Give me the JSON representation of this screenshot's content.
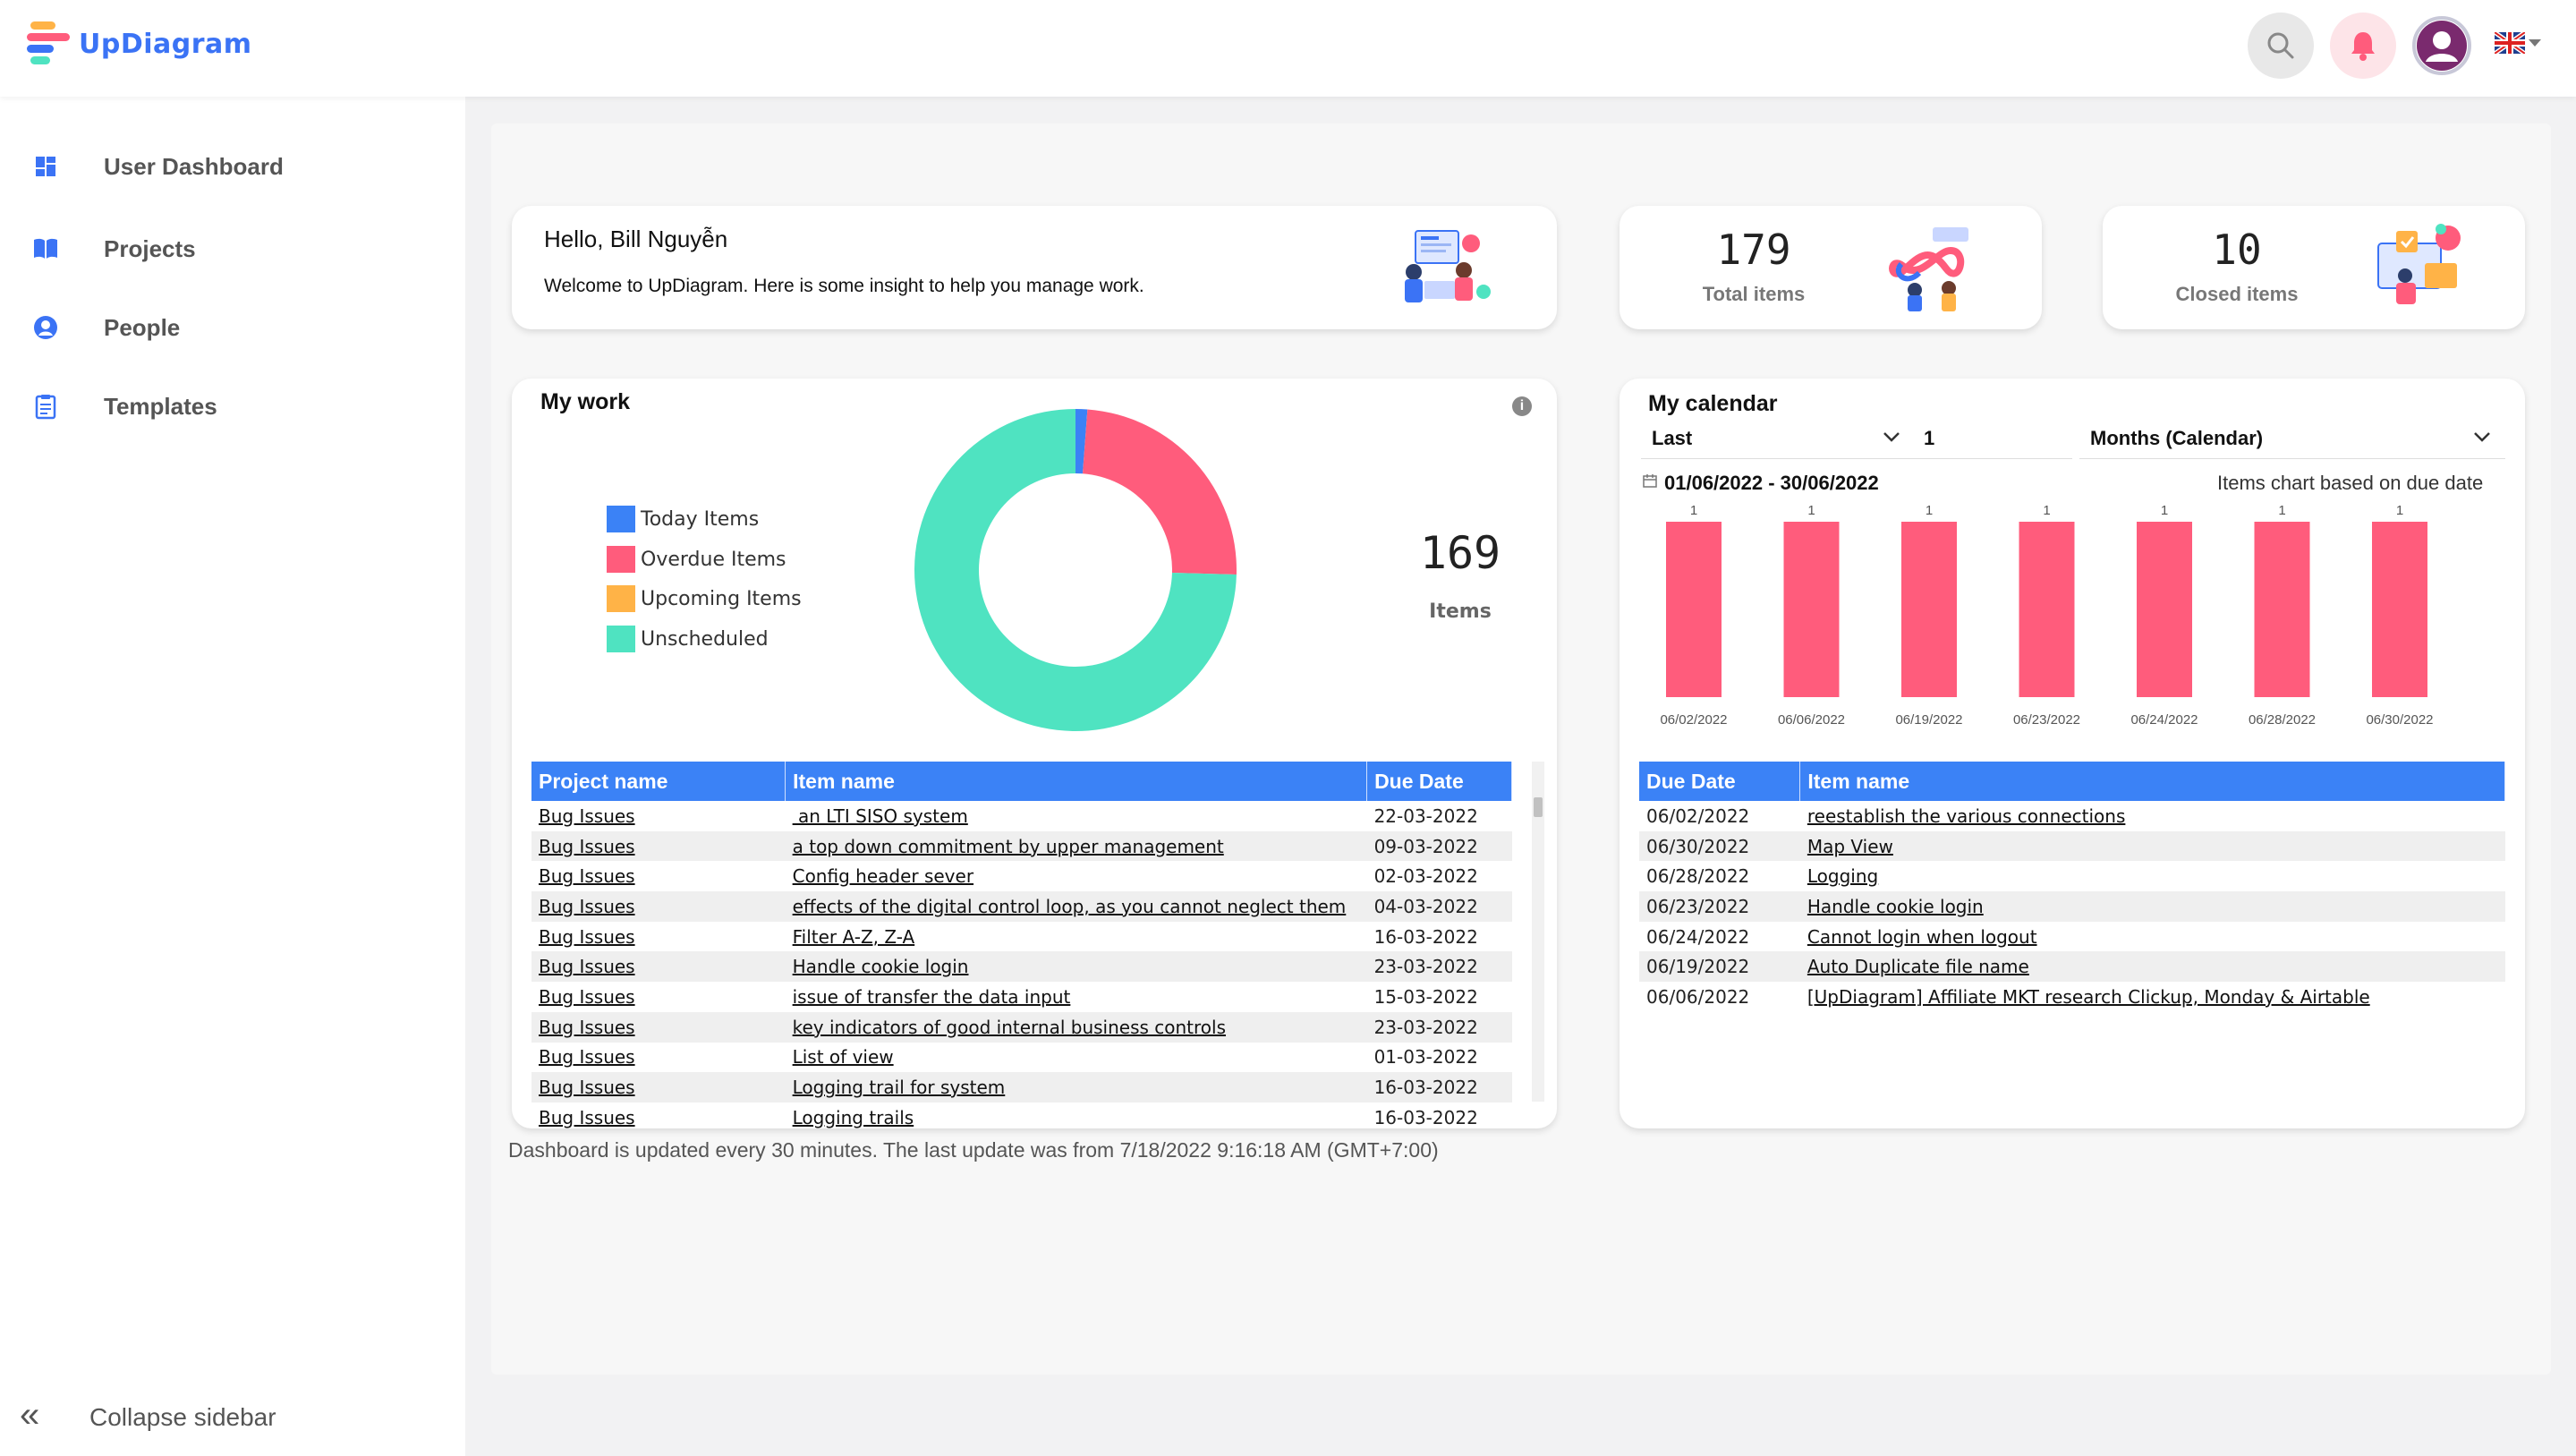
{
  "app": {
    "name": "UpDiagram",
    "brand_colors": [
      "#3b73f5",
      "#ff5c7c",
      "#ffb347",
      "#4fe3c1"
    ]
  },
  "header": {
    "search_icon": "search-icon",
    "notification_icon": "bell-icon",
    "avatar_icon": "user-avatar-icon",
    "language_icon": "uk-flag-icon"
  },
  "sidebar": {
    "items": [
      {
        "label": "User Dashboard",
        "icon": "dashboard-grid-icon",
        "active": true
      },
      {
        "label": "Projects",
        "icon": "book-icon"
      },
      {
        "label": "People",
        "icon": "person-icon"
      },
      {
        "label": "Templates",
        "icon": "clipboard-icon"
      }
    ],
    "collapse_label": "Collapse sidebar"
  },
  "welcome": {
    "greeting": "Hello, Bill Nguyễn",
    "message": "Welcome to UpDiagram. Here is some insight to help you manage work."
  },
  "stats": {
    "total": {
      "value": "179",
      "label": "Total items"
    },
    "closed": {
      "value": "10",
      "label": "Closed items"
    }
  },
  "my_work": {
    "title": "My work",
    "total_value": "169",
    "total_label": "Items",
    "legend": [
      {
        "label": "Today Items",
        "color": "#3b82f6"
      },
      {
        "label": "Overdue Items",
        "color": "#ff5c7c"
      },
      {
        "label": "Upcoming Items",
        "color": "#ffb347"
      },
      {
        "label": "Unscheduled",
        "color": "#4fe3c1"
      }
    ],
    "table": {
      "columns": [
        "Project name",
        "Item name",
        "Due Date"
      ],
      "rows": [
        [
          "Bug Issues",
          " an LTI SISO system",
          "22-03-2022"
        ],
        [
          "Bug Issues",
          "a top down commitment by upper management",
          "09-03-2022"
        ],
        [
          "Bug Issues",
          "Config header sever",
          "02-03-2022"
        ],
        [
          "Bug Issues",
          "effects of the digital control loop, as you cannot neglect them",
          "04-03-2022"
        ],
        [
          "Bug Issues",
          "Filter A-Z, Z-A",
          "16-03-2022"
        ],
        [
          "Bug Issues",
          "Handle cookie login",
          "23-03-2022"
        ],
        [
          "Bug Issues",
          "issue of transfer the data input",
          "15-03-2022"
        ],
        [
          "Bug Issues",
          "key indicators of good internal business controls",
          "23-03-2022"
        ],
        [
          "Bug Issues",
          "List of view",
          "01-03-2022"
        ],
        [
          "Bug Issues",
          "Logging trail for system",
          "16-03-2022"
        ],
        [
          "Bug Issues",
          "Logging trails",
          "16-03-2022"
        ]
      ]
    }
  },
  "chart_data": [
    {
      "type": "pie",
      "categories": [
        "Today Items",
        "Overdue Items",
        "Upcoming Items",
        "Unscheduled"
      ],
      "values": [
        2,
        41,
        0,
        126
      ],
      "colors": [
        "#3b82f6",
        "#ff5c7c",
        "#ffb347",
        "#4fe3c1"
      ],
      "donut": true,
      "legend": "left"
    },
    {
      "type": "bar",
      "categories": [
        "06/02/2022",
        "06/06/2022",
        "06/19/2022",
        "06/23/2022",
        "06/24/2022",
        "06/28/2022",
        "06/30/2022"
      ],
      "values": [
        1,
        1,
        1,
        1,
        1,
        1,
        1
      ],
      "color": "#ff5c7c",
      "ylim": [
        0,
        1
      ],
      "grid": false
    }
  ],
  "calendar": {
    "title": "My calendar",
    "period_select": "Last",
    "period_count": "1",
    "unit_select": "Months (Calendar)",
    "date_range": "01/06/2022 - 30/06/2022",
    "chart_caption": "Items chart based on due date",
    "table": {
      "columns": [
        "Due Date",
        "Item name"
      ],
      "rows": [
        [
          "06/02/2022",
          "reestablish the various connections"
        ],
        [
          "06/30/2022",
          "Map View"
        ],
        [
          "06/28/2022",
          "Logging"
        ],
        [
          "06/23/2022",
          "Handle cookie login"
        ],
        [
          "06/24/2022",
          "Cannot login when logout"
        ],
        [
          "06/19/2022",
          "Auto Duplicate file name"
        ],
        [
          "06/06/2022",
          "[UpDiagram] Affiliate MKT research Clickup, Monday & Airtable"
        ]
      ]
    }
  },
  "footer": {
    "note": "Dashboard is updated every 30 minutes. The last update was from 7/18/2022 9:16:18 AM (GMT+7:00)"
  }
}
